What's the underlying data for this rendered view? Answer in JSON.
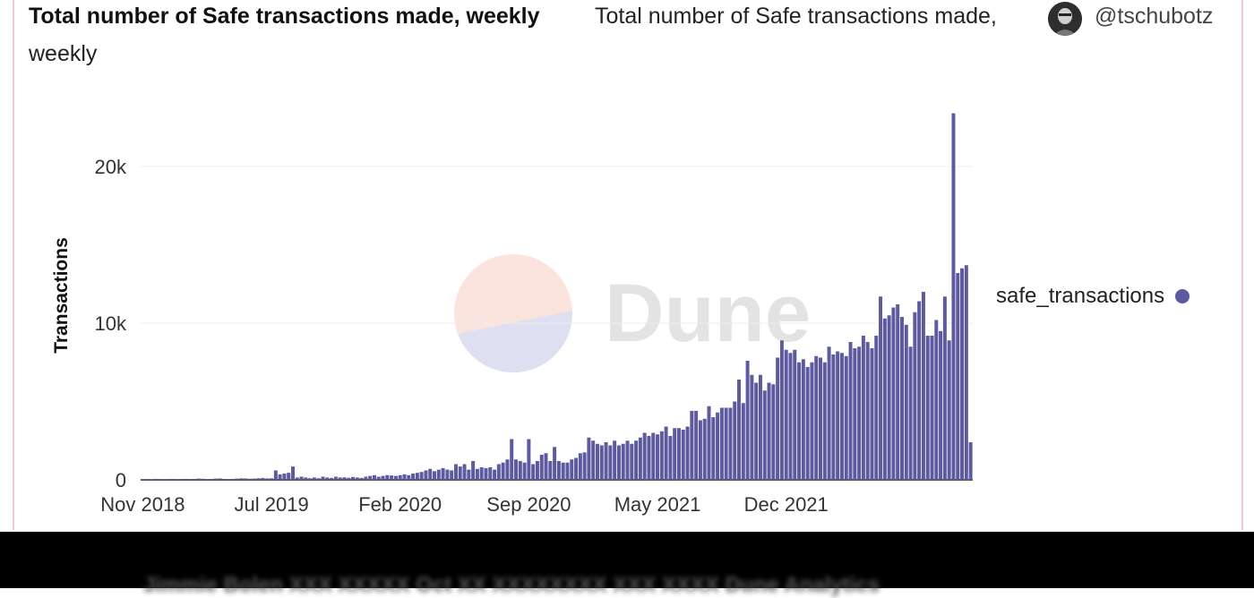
{
  "header": {
    "title": "Total number of Safe transactions made, weekly",
    "subtitle_line1": "Total number of Safe transactions made,",
    "subtitle_line2": "weekly",
    "author": "@tschubotz"
  },
  "watermark": "Dune",
  "legend": {
    "label": "safe_transactions",
    "color": "#5d5a9f"
  },
  "chart_data": {
    "type": "bar",
    "title": "Total number of Safe transactions made, weekly",
    "xlabel": "",
    "ylabel": "Transactions",
    "ylim": [
      0,
      24000
    ],
    "y_ticks": [
      0,
      10000,
      20000
    ],
    "y_tick_labels": [
      "0",
      "10k",
      "20k"
    ],
    "x_tick_labels": [
      "Nov 2018",
      "Jul 2019",
      "Feb 2020",
      "Sep 2020",
      "May 2021",
      "Dec 2021"
    ],
    "x_tick_bar_index": [
      0,
      30,
      60,
      90,
      120,
      150
    ],
    "grid": true,
    "legend_position": "right",
    "series": [
      {
        "name": "safe_transactions",
        "color": "#5d5a9f",
        "values": [
          50,
          40,
          30,
          60,
          50,
          40,
          50,
          60,
          40,
          50,
          60,
          50,
          60,
          80,
          70,
          50,
          60,
          80,
          90,
          60,
          50,
          60,
          80,
          100,
          90,
          70,
          80,
          100,
          120,
          90,
          100,
          600,
          350,
          400,
          450,
          850,
          150,
          200,
          150,
          100,
          150,
          100,
          200,
          150,
          120,
          200,
          150,
          160,
          130,
          180,
          150,
          120,
          200,
          250,
          300,
          200,
          250,
          300,
          280,
          250,
          300,
          350,
          300,
          400,
          450,
          500,
          600,
          700,
          550,
          650,
          750,
          650,
          600,
          1000,
          850,
          1000,
          650,
          1200,
          700,
          800,
          750,
          800,
          650,
          1000,
          1100,
          1300,
          2600,
          1300,
          1200,
          1100,
          2600,
          1000,
          1200,
          1600,
          1700,
          1200,
          2100,
          1200,
          1100,
          1100,
          1300,
          1400,
          1700,
          1750,
          2700,
          2500,
          2300,
          2200,
          2400,
          2200,
          2500,
          2200,
          2300,
          2500,
          2300,
          2500,
          2700,
          3000,
          2800,
          3000,
          2900,
          3100,
          3400,
          2800,
          3300,
          3300,
          3200,
          3400,
          4400,
          4400,
          3800,
          3900,
          4700,
          4000,
          4300,
          4600,
          4600,
          4600,
          5000,
          6400,
          4900,
          7600,
          6700,
          6200,
          6700,
          5700,
          6200,
          6100,
          7800,
          8900,
          8300,
          8100,
          8300,
          7500,
          7700,
          7200,
          7500,
          7900,
          7800,
          7500,
          8500,
          8000,
          8200,
          8100,
          7900,
          8800,
          8400,
          8500,
          9200,
          8800,
          8400,
          9200,
          11700,
          10300,
          10500,
          11000,
          11200,
          10400,
          9900,
          8500,
          10700,
          11400,
          12000,
          9200,
          9200,
          10200,
          9500,
          11700,
          8900,
          23400,
          13200,
          13500,
          13700,
          2400
        ]
      }
    ]
  },
  "footer": {
    "text": "Jimmie Bolen XXX XXXXX Oct XX XXXXXXXX XXX XXXX Dune Analytics"
  }
}
